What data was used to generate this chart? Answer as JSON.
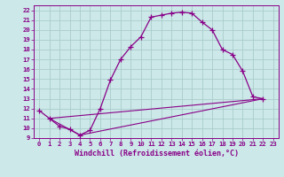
{
  "xlabel": "Windchill (Refroidissement éolien,°C)",
  "bg_color": "#cce8e8",
  "grid_color": "#aacccc",
  "line_color": "#880088",
  "xlim": [
    -0.5,
    23.5
  ],
  "ylim": [
    9,
    22.5
  ],
  "xticks": [
    0,
    1,
    2,
    3,
    4,
    5,
    6,
    7,
    8,
    9,
    10,
    11,
    12,
    13,
    14,
    15,
    16,
    17,
    18,
    19,
    20,
    21,
    22,
    23
  ],
  "yticks": [
    9,
    10,
    11,
    12,
    13,
    14,
    15,
    16,
    17,
    18,
    19,
    20,
    21,
    22
  ],
  "line1_x": [
    0,
    1,
    2,
    3,
    4,
    5,
    6,
    7,
    8,
    9,
    10,
    11,
    12,
    13,
    14,
    15,
    16,
    17,
    18,
    19,
    20,
    21,
    22
  ],
  "line1_y": [
    11.8,
    11.0,
    10.2,
    9.9,
    9.3,
    9.8,
    12.0,
    14.9,
    17.0,
    18.3,
    19.3,
    21.3,
    21.5,
    21.7,
    21.8,
    21.7,
    20.8,
    20.0,
    18.0,
    17.5,
    15.8,
    13.2,
    13.0
  ],
  "line2_x": [
    1,
    4,
    22
  ],
  "line2_y": [
    11.0,
    9.3,
    13.0
  ],
  "line3_x": [
    1,
    22
  ],
  "line3_y": [
    11.0,
    13.0
  ],
  "font_family": "monospace",
  "tick_fontsize": 5.2,
  "label_fontsize": 6.0
}
